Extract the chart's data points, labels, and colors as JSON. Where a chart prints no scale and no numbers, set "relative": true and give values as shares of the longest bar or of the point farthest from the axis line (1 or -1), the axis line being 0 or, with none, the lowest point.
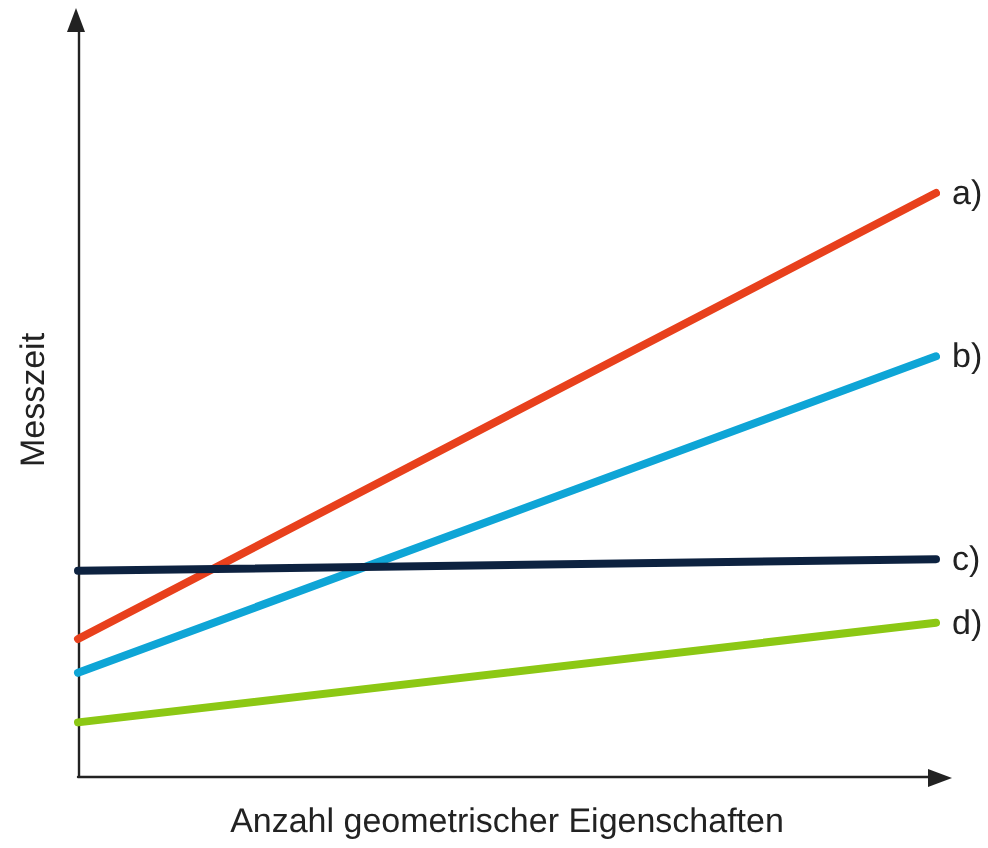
{
  "chart_data": {
    "type": "line",
    "relative": true,
    "xlabel": "Anzahl geometrischer Eigenschaften",
    "ylabel": "Messzeit",
    "categories": [
      null,
      null
    ],
    "grid": false,
    "legend": false,
    "marker": "none",
    "line_style": "solid",
    "series": [
      {
        "name": "a)",
        "color": "#e8401c",
        "values": [
          0.235,
          1.0
        ]
      },
      {
        "name": "b)",
        "color": "#0ea5d6",
        "values": [
          0.177,
          0.72
        ]
      },
      {
        "name": "c)",
        "color": "#0d2240",
        "values": [
          0.352,
          0.372
        ]
      },
      {
        "name": "d)",
        "color": "#8cc814",
        "values": [
          0.092,
          0.263
        ]
      }
    ]
  }
}
